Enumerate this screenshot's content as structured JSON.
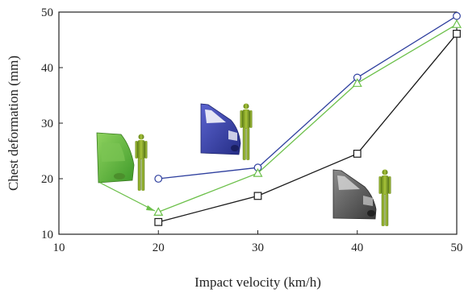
{
  "chart_data": {
    "type": "line",
    "xlabel": "Impact velocity (km/h)",
    "ylabel": "Chest deformation (mm)",
    "xlim": [
      10,
      50
    ],
    "ylim": [
      10,
      50
    ],
    "x_ticks": [
      10,
      20,
      30,
      40,
      50
    ],
    "y_ticks": [
      10,
      20,
      30,
      40,
      50
    ],
    "grid": false,
    "series": [
      {
        "marker": "circle",
        "color": "#2e3f9e",
        "x": [
          20,
          30,
          40,
          50
        ],
        "y": [
          20.0,
          22.0,
          38.2,
          49.3
        ]
      },
      {
        "marker": "triangle",
        "color": "#6cc04a",
        "x": [
          20,
          30,
          40,
          50
        ],
        "y": [
          14.0,
          21.0,
          37.2,
          47.8
        ]
      },
      {
        "marker": "square",
        "color": "#1a1a1a",
        "x": [
          20,
          30,
          40,
          50
        ],
        "y": [
          12.2,
          16.9,
          24.5,
          46.1
        ]
      }
    ],
    "illustrations": [
      {
        "name": "green-vehicle-front-with-dummy",
        "color": "#6cc04a"
      },
      {
        "name": "blue-vehicle-front-with-dummy",
        "color": "#3a43a8"
      },
      {
        "name": "gray-vehicle-front-with-dummy",
        "color": "#555555"
      }
    ]
  }
}
